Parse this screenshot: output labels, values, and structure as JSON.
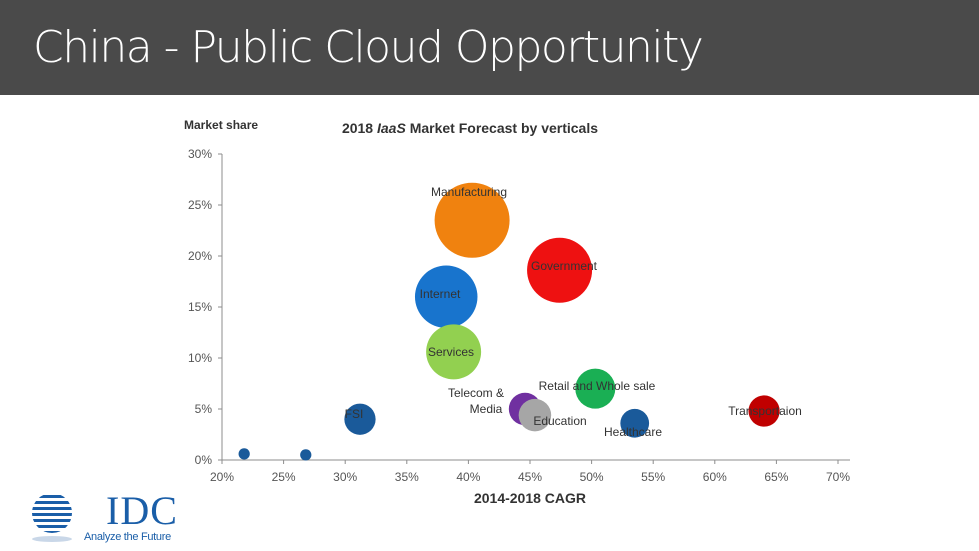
{
  "slide": {
    "title": "China - Public Cloud Opportunity"
  },
  "logo": {
    "name": "IDC",
    "tagline": "Analyze the Future"
  },
  "colors": {
    "title_bar": "#4a4a4a",
    "logo": "#1a5ea8"
  },
  "chart_data": {
    "type": "scatter",
    "title_parts": [
      "2018 ",
      "IaaS",
      " Market Forecast by verticals"
    ],
    "xlabel": "2014-2018 CAGR",
    "ylabel": "Market share",
    "xlim": [
      20,
      70
    ],
    "ylim": [
      0,
      30
    ],
    "x_ticks": [
      20,
      25,
      30,
      35,
      40,
      45,
      50,
      55,
      60,
      65,
      70
    ],
    "y_ticks": [
      0,
      5,
      10,
      15,
      20,
      25,
      30
    ],
    "x_tick_labels": [
      "20%",
      "25%",
      "30%",
      "35%",
      "40%",
      "45%",
      "50%",
      "55%",
      "60%",
      "65%",
      "70%"
    ],
    "y_tick_labels": [
      "0%",
      "5%",
      "10%",
      "15%",
      "20%",
      "25%",
      "30%"
    ],
    "grid": false,
    "points": [
      {
        "label": "Manufacturing",
        "x": 40.3,
        "y": 23.5,
        "size": 3.0,
        "color": "#f0820f"
      },
      {
        "label": "Government",
        "x": 47.4,
        "y": 18.6,
        "size": 2.6,
        "color": "#ee1111"
      },
      {
        "label": "Internet",
        "x": 38.2,
        "y": 16.0,
        "size": 2.5,
        "color": "#1874cd"
      },
      {
        "label": "Services",
        "x": 38.8,
        "y": 10.6,
        "size": 2.2,
        "color": "#92d050"
      },
      {
        "label": "Retail and Whole sale",
        "x": 50.3,
        "y": 7.0,
        "size": 1.6,
        "color": "#1aaf54"
      },
      {
        "label": "Telecom & Media",
        "x": 44.6,
        "y": 5.0,
        "size": 1.3,
        "color": "#7030a0"
      },
      {
        "label": "Education",
        "x": 45.4,
        "y": 4.4,
        "size": 1.3,
        "color": "#a6a6a6"
      },
      {
        "label": "FSI",
        "x": 31.2,
        "y": 4.0,
        "size": 1.25,
        "color": "#1a5a9a"
      },
      {
        "label": "Healthcare",
        "x": 53.5,
        "y": 3.6,
        "size": 1.15,
        "color": "#1a5a9a"
      },
      {
        "label": "Transportaion",
        "x": 64.0,
        "y": 4.8,
        "size": 1.25,
        "color": "#c00000"
      },
      {
        "label": "",
        "x": 21.8,
        "y": 0.6,
        "size": 0.45,
        "color": "#1a5a9a"
      },
      {
        "label": "",
        "x": 26.8,
        "y": 0.5,
        "size": 0.45,
        "color": "#1a5a9a"
      }
    ]
  }
}
